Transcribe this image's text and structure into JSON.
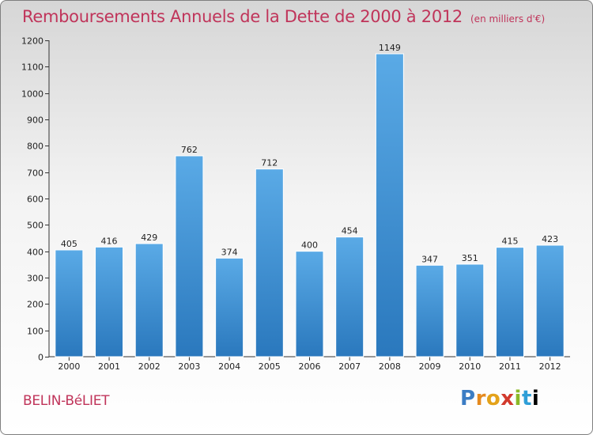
{
  "header": {
    "title": "Remboursements Annuels de la Dette de 2000 à 2012",
    "unit": "(en milliers d'€)"
  },
  "footer": {
    "city": "BELIN-BéLIET",
    "logo_letters": [
      "P",
      "r",
      "o",
      "x",
      "i",
      "t",
      "i"
    ]
  },
  "colors": {
    "title": "#c0345a",
    "bar_top": "#5aaae6",
    "bar_bottom": "#2a78bd",
    "axis": "#333333"
  },
  "chart_data": {
    "type": "bar",
    "title": "Remboursements Annuels de la Dette de 2000 à 2012",
    "ylabel": "en milliers d'€",
    "xlabel": "",
    "ylim": [
      0,
      1200
    ],
    "ytick_step": 100,
    "grid": false,
    "categories": [
      "2000",
      "2001",
      "2002",
      "2003",
      "2004",
      "2005",
      "2006",
      "2007",
      "2008",
      "2009",
      "2010",
      "2011",
      "2012"
    ],
    "values": [
      405,
      416,
      429,
      762,
      374,
      712,
      400,
      454,
      1149,
      347,
      351,
      415,
      423
    ]
  }
}
